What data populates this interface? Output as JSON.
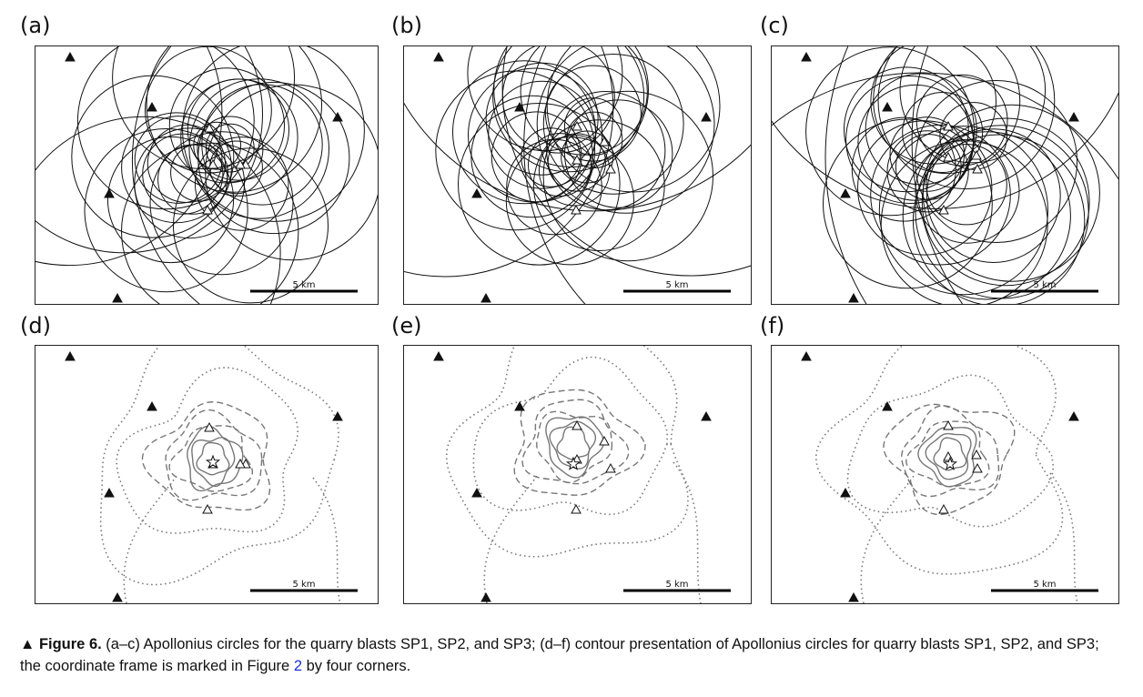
{
  "panels": [
    {
      "label": "(a)",
      "type": "circles"
    },
    {
      "label": "(b)",
      "type": "circles"
    },
    {
      "label": "(c)",
      "type": "circles"
    },
    {
      "label": "(d)",
      "type": "contours"
    },
    {
      "label": "(e)",
      "type": "contours"
    },
    {
      "label": "(f)",
      "type": "contours"
    }
  ],
  "scale_label": "5 km",
  "caption": {
    "marker": "▲",
    "figure": "Figure 6.",
    "text": " (a–c) Apollonius circles for the quarry blasts SP1, SP2, and SP3; (d–f) contour presentation of Apollonius circles for quarry blasts SP1, SP2, and SP3; the coordinate frame is marked in Figure ",
    "ref": "2",
    "tail": " by four corners."
  }
}
